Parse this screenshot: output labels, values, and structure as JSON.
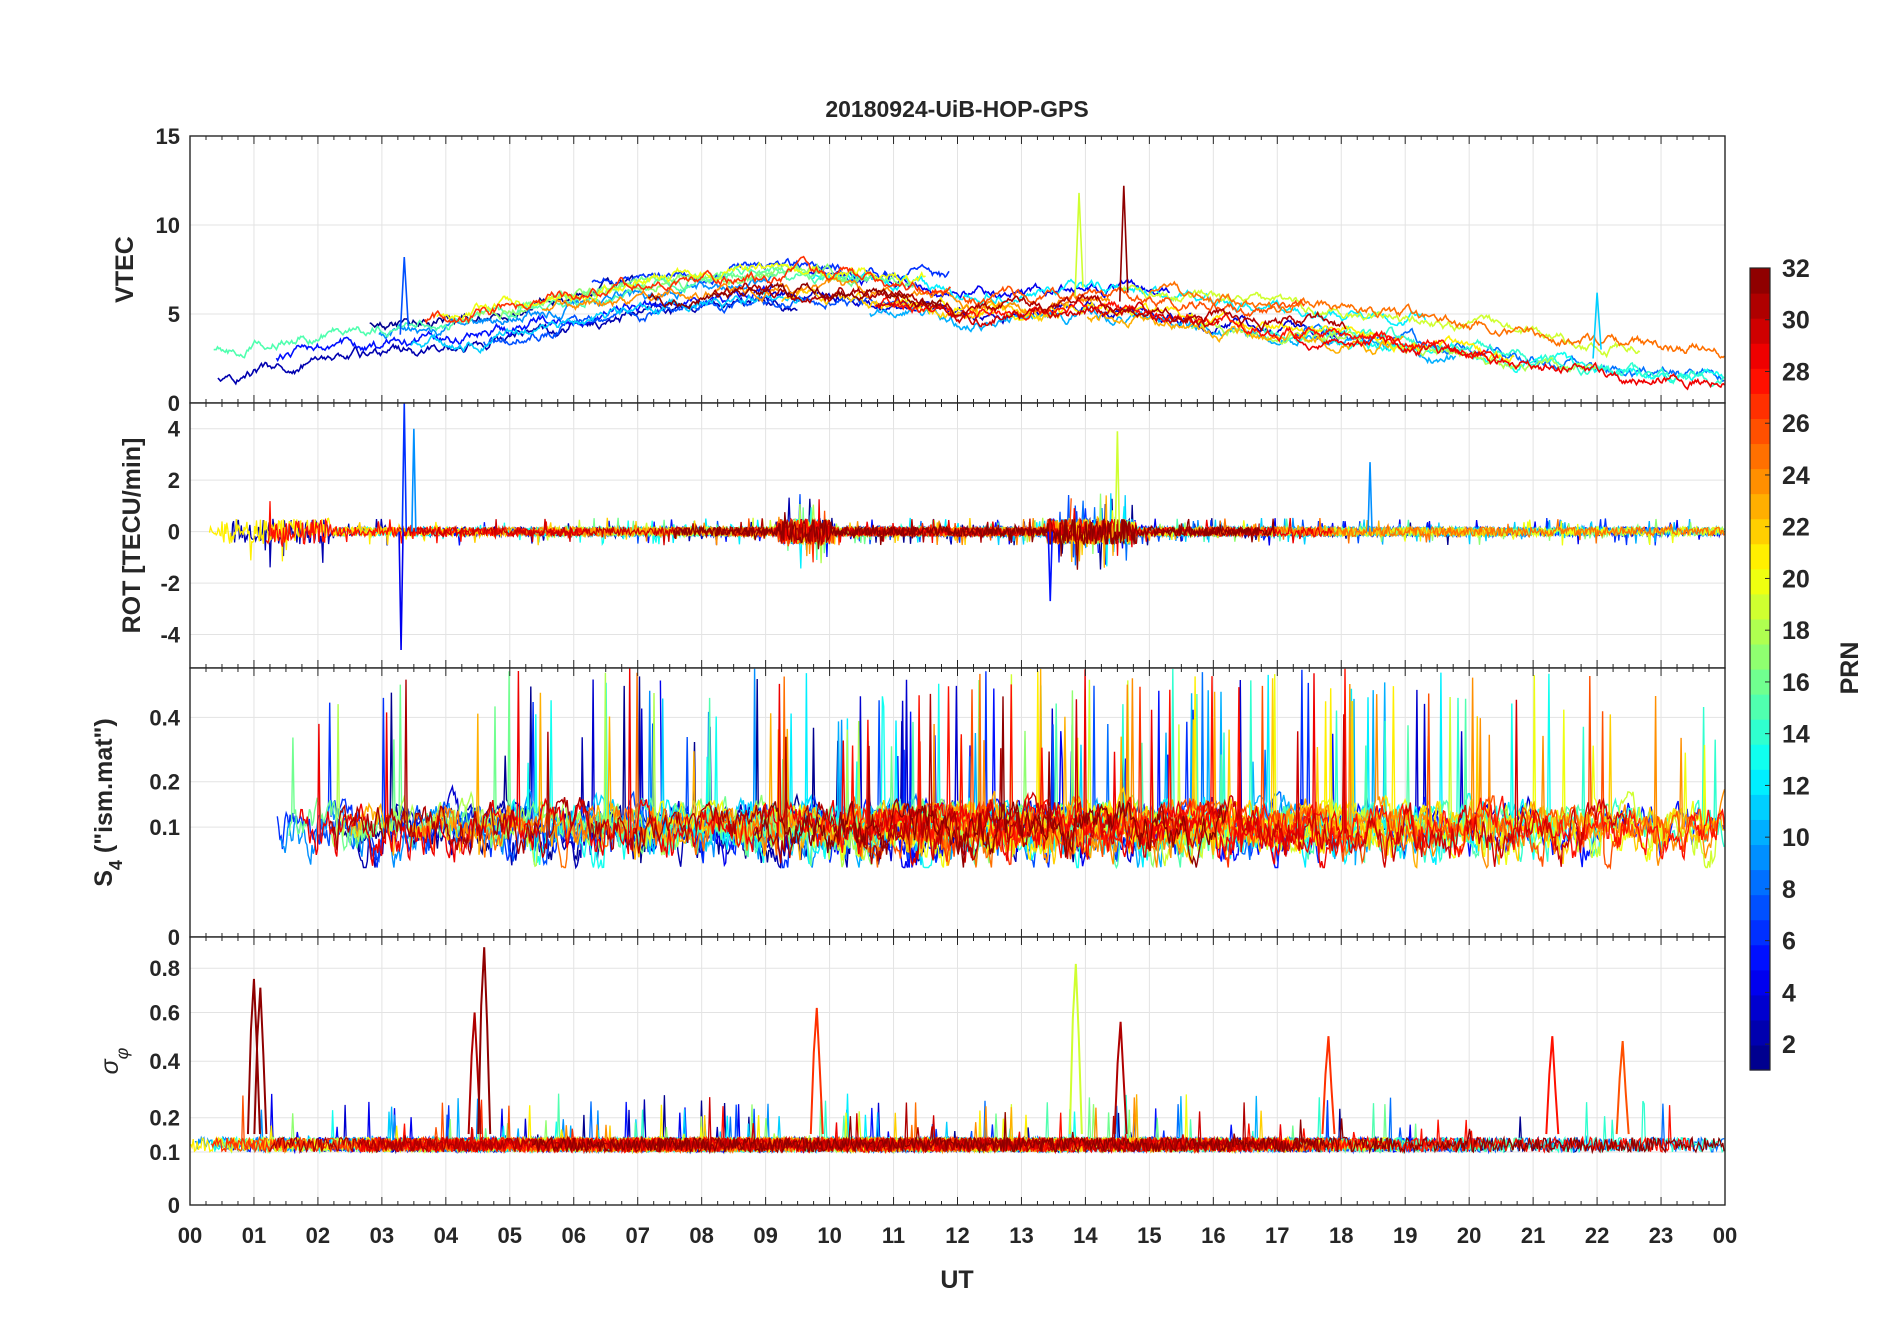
{
  "chart_data": [
    {
      "type": "line",
      "panel": "vtec",
      "title": "20180924-UiB-HOP-GPS",
      "ylabel": "VTEC",
      "xlabel": "",
      "ylim": [
        0,
        15
      ],
      "yticks": [
        0,
        5,
        10,
        15
      ],
      "xlim": [
        0,
        24
      ],
      "grid": true,
      "baseline": 3.0,
      "series_note": "one trace per GPS PRN (1-32), colored by PRN",
      "envelope_hours": [
        0,
        2,
        4,
        6,
        8,
        10,
        12,
        14,
        16,
        18,
        20,
        22,
        24
      ],
      "envelope_values": [
        2.0,
        3.5,
        4.0,
        5.5,
        6.5,
        6.5,
        5.5,
        6.0,
        5.0,
        4.5,
        3.5,
        2.5,
        2.0
      ],
      "peaks": [
        {
          "x": 3.35,
          "y": 8.2
        },
        {
          "x": 13.9,
          "y": 11.8
        },
        {
          "x": 14.6,
          "y": 12.2
        },
        {
          "x": 22.0,
          "y": 6.2
        }
      ]
    },
    {
      "type": "line",
      "panel": "rot",
      "ylabel": "ROT [TECU/min]",
      "ylim": [
        -5.3,
        5
      ],
      "yticks": [
        -4,
        -2,
        0,
        2,
        4
      ],
      "xlim": [
        0,
        24
      ],
      "grid": true,
      "baseline": 0,
      "spikes": [
        {
          "x": 3.3,
          "y": -4.6
        },
        {
          "x": 3.35,
          "y": 5.0
        },
        {
          "x": 3.5,
          "y": 4.0
        },
        {
          "x": 13.45,
          "y": -2.7
        },
        {
          "x": 14.5,
          "y": 3.9
        },
        {
          "x": 18.45,
          "y": 2.7
        }
      ]
    },
    {
      "type": "line",
      "panel": "s4",
      "ylabel": "S4 (\"ism.mat\")",
      "ylabel_main": "S",
      "ylabel_sub": "4",
      "ylabel_rest": " (\"ism.mat\")",
      "ylim": [
        0,
        0.6
      ],
      "yticks": [
        0,
        0.1,
        0.2,
        0.4
      ],
      "scale": "log-like",
      "xlim": [
        0,
        24
      ],
      "grid": true,
      "baseline": 0.12
    },
    {
      "type": "line",
      "panel": "sigma_phi",
      "ylabel": "σφ",
      "ylabel_main": "σ",
      "ylabel_sub": "φ",
      "ylim": [
        0,
        0.95
      ],
      "yticks": [
        0,
        0.1,
        0.2,
        0.4,
        0.6,
        0.8
      ],
      "xlabel": "UT",
      "xlim": [
        0,
        24
      ],
      "xtick_labels": [
        "00",
        "01",
        "02",
        "03",
        "04",
        "05",
        "06",
        "07",
        "08",
        "09",
        "10",
        "11",
        "12",
        "13",
        "14",
        "15",
        "16",
        "17",
        "18",
        "19",
        "20",
        "21",
        "22",
        "23",
        "00"
      ],
      "grid": true,
      "baseline": 0.12,
      "bursts": [
        {
          "x": 1.0,
          "y": 0.75
        },
        {
          "x": 1.1,
          "y": 0.71
        },
        {
          "x": 4.45,
          "y": 0.6
        },
        {
          "x": 4.6,
          "y": 0.9
        },
        {
          "x": 9.8,
          "y": 0.62
        },
        {
          "x": 13.85,
          "y": 0.82
        },
        {
          "x": 14.55,
          "y": 0.56
        },
        {
          "x": 17.8,
          "y": 0.5
        },
        {
          "x": 21.3,
          "y": 0.5
        },
        {
          "x": 22.4,
          "y": 0.48
        }
      ]
    }
  ],
  "colorbar": {
    "label": "PRN",
    "range": [
      1,
      32
    ],
    "ticks": [
      "2",
      "4",
      "6",
      "8",
      "10",
      "12",
      "14",
      "16",
      "18",
      "20",
      "22",
      "24",
      "26",
      "28",
      "30",
      "32"
    ],
    "colormap": "jet",
    "levels": 32
  },
  "prns": [
    1,
    2,
    3,
    4,
    5,
    6,
    7,
    8,
    9,
    10,
    11,
    12,
    13,
    14,
    15,
    16,
    17,
    18,
    19,
    20,
    21,
    22,
    23,
    24,
    25,
    26,
    27,
    28,
    29,
    30,
    31,
    32
  ]
}
